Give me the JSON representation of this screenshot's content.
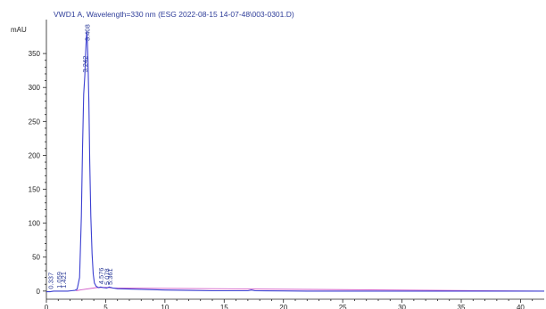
{
  "chart_data": {
    "type": "line",
    "title": "VWD1 A, Wavelength=330 nm (ESG 2022-08-15 14-07-48\\003-0301.D)",
    "ylabel": "mAU",
    "xlabel": "",
    "xlim": [
      0,
      42
    ],
    "ylim": [
      -12,
      400
    ],
    "x_ticks": [
      0,
      5,
      10,
      15,
      20,
      25,
      30,
      35,
      40
    ],
    "x_tick_labels": [
      "0",
      "5",
      "10",
      "15",
      "20",
      "25",
      "30",
      "35",
      "40"
    ],
    "y_ticks": [
      0,
      50,
      100,
      150,
      200,
      250,
      300,
      350
    ],
    "y_tick_labels": [
      "0",
      "50",
      "100",
      "150",
      "200",
      "250",
      "300",
      "350"
    ],
    "series": [
      {
        "color": "#3b3fd1",
        "x": [
          0.0,
          0.3,
          0.6,
          0.9,
          1.2,
          1.5,
          1.8,
          2.1,
          2.4,
          2.6,
          2.8,
          2.95,
          3.05,
          3.15,
          3.242,
          3.3,
          3.35,
          3.408,
          3.45,
          3.5,
          3.58,
          3.66,
          3.75,
          3.85,
          3.95,
          4.05,
          4.2,
          4.4,
          4.576,
          4.8,
          5.1,
          5.3,
          5.6,
          6.0,
          7.0,
          8.0,
          9.0,
          10.0,
          12.0,
          14.0,
          16.0,
          17.0,
          17.3,
          17.6,
          18.5,
          20.0,
          22.0,
          25.0,
          28.0,
          31.0,
          34.0,
          37.0,
          40.0,
          42.0
        ],
        "y": [
          -1,
          -1,
          0,
          0,
          0,
          0,
          0,
          0.5,
          1,
          3,
          20,
          110,
          210,
          290,
          318,
          345,
          365,
          383,
          372,
          345,
          280,
          190,
          110,
          55,
          25,
          12,
          7,
          5,
          6,
          5,
          4.5,
          6,
          4.5,
          3.5,
          3,
          2.5,
          2,
          1.5,
          1,
          0.5,
          0.5,
          0.5,
          1.5,
          0.5,
          0.3,
          0.2,
          0,
          0,
          0,
          0,
          0,
          0,
          0,
          0
        ]
      }
    ],
    "baseline": {
      "color": "#d05ac8",
      "x": [
        2.5,
        3.0,
        4.2,
        5.0,
        5.6,
        42.0
      ],
      "y": [
        0.5,
        2,
        5,
        5.5,
        4.5,
        0
      ]
    },
    "peak_labels": [
      {
        "text": "0.337",
        "x": 0.337,
        "y": -1
      },
      {
        "text": "1.059",
        "x": 1.059,
        "y": 0
      },
      {
        "text": "1.421",
        "x": 1.421,
        "y": 0
      },
      {
        "text": "3.242",
        "x": 3.242,
        "y": 318
      },
      {
        "text": "3.408",
        "x": 3.408,
        "y": 383
      },
      {
        "text": "4.576",
        "x": 4.576,
        "y": 6
      },
      {
        "text": "5.078",
        "x": 5.078,
        "y": 5
      },
      {
        "text": "5.361",
        "x": 5.361,
        "y": 5
      }
    ],
    "grid": false,
    "legend": "none"
  }
}
